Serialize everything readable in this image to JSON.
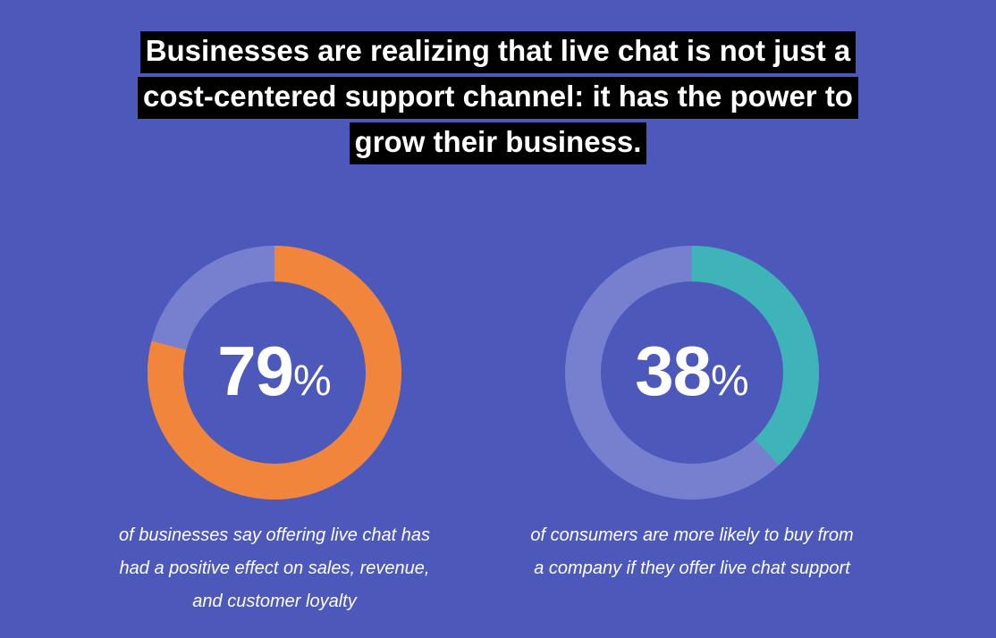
{
  "headline": {
    "lines": [
      "Businesses are realizing that live chat is not just a",
      "cost-centered support channel: it has the power to",
      "grow their business."
    ]
  },
  "colors": {
    "background": "#4d58bb",
    "track": "#7680cf",
    "orange": "#f1853b",
    "teal": "#3eb4b9",
    "headline_bg": "#000000",
    "text": "#ffffff"
  },
  "chart_data": [
    {
      "type": "pie",
      "value": 79,
      "value_label": "79",
      "unit": "%",
      "max": 100,
      "color": "#f1853b",
      "track_color": "#7680cf",
      "caption_lines": [
        "of businesses say offering live chat has",
        "had a positive effect on sales, revenue,",
        "and customer loyalty"
      ]
    },
    {
      "type": "pie",
      "value": 38,
      "value_label": "38",
      "unit": "%",
      "max": 100,
      "color": "#3eb4b9",
      "track_color": "#7680cf",
      "caption_lines": [
        "of consumers are more likely to buy from",
        "a company if they offer live chat support"
      ]
    }
  ]
}
